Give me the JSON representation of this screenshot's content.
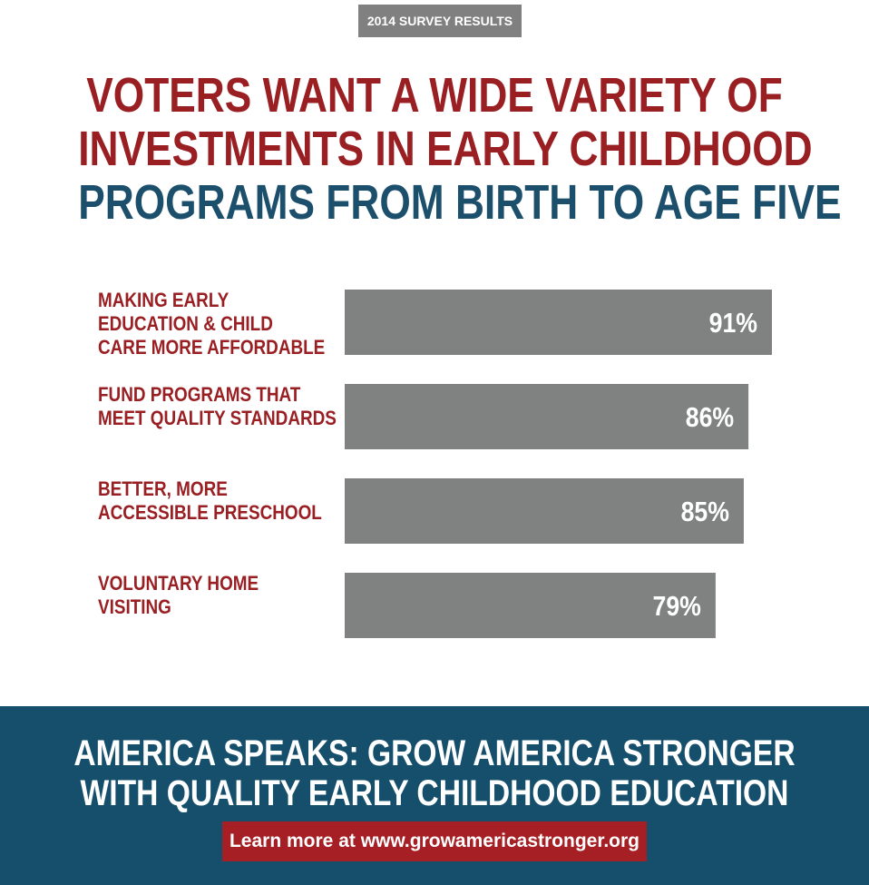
{
  "badge": "2014 SURVEY RESULTS",
  "headline": {
    "lines_red": [
      "VOTERS WANT A WIDE VARIETY OF",
      "INVESTMENTS IN EARLY CHILDHOOD"
    ],
    "line_blue": "PROGRAMS FROM BIRTH TO AGE FIVE"
  },
  "colors": {
    "red": "#9a1f23",
    "blue": "#1c4f6c",
    "bar": "#808282",
    "footer_bg": "#154f6c",
    "cta_bg": "#a51f24",
    "badge_bg": "#808080"
  },
  "chart_data": {
    "type": "bar",
    "orientation": "horizontal",
    "categories": [
      [
        "MAKING EARLY",
        "EDUCATION & CHILD",
        "CARE MORE AFFORDABLE"
      ],
      [
        "FUND PROGRAMS THAT",
        "MEET QUALITY STANDARDS"
      ],
      [
        "BETTER, MORE",
        "ACCESSIBLE PRESCHOOL"
      ],
      [
        "VOLUNTARY HOME",
        "VISITING"
      ]
    ],
    "values": [
      91,
      86,
      85,
      79
    ],
    "value_labels": [
      "91%",
      "86%",
      "85%",
      "79%"
    ],
    "unit": "%",
    "grid": false,
    "legend": "none"
  },
  "footer": {
    "lines": [
      "AMERICA SPEAKS: GROW AMERICA STRONGER",
      "WITH QUALITY EARLY CHILDHOOD EDUCATION"
    ],
    "cta": "Learn more at www.growamericastronger.org"
  }
}
